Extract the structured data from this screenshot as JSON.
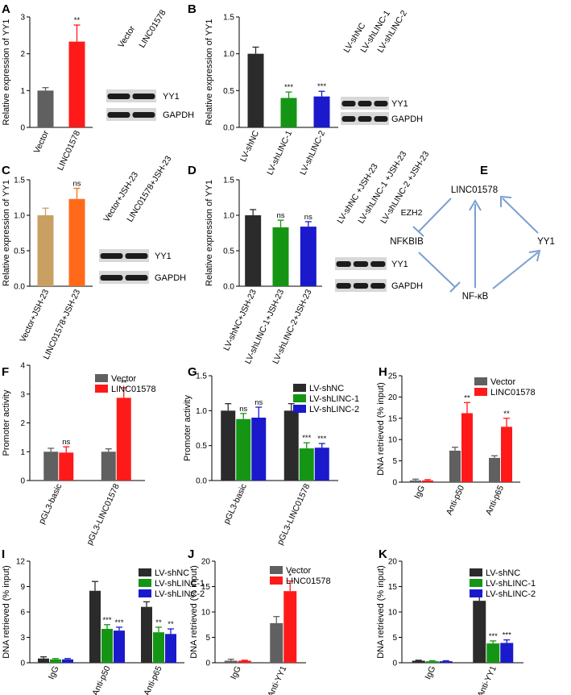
{
  "colors": {
    "gray": "#606060",
    "dark": "#2b2b2b",
    "red": "#ff1a1a",
    "green": "#149614",
    "blue": "#1a1acc",
    "tan": "#c9a061",
    "orange": "#ff6a1a",
    "arrow": "#7b9fcf"
  },
  "chart_data": [
    {
      "panel": "A",
      "type": "bar",
      "ylabel": "Relative expression of YY1",
      "ylim": [
        0,
        3
      ],
      "yticks": [
        0,
        1,
        2,
        3
      ],
      "categories": [
        "Vector",
        "LINC01578"
      ],
      "values": [
        1.0,
        2.33
      ],
      "errors": [
        0.08,
        0.45
      ],
      "colors": [
        "gray",
        "red"
      ],
      "sig": [
        "",
        "**"
      ],
      "blot": {
        "lanes": [
          "Vector",
          "LINC01578"
        ],
        "rows": [
          "YY1",
          "GAPDH"
        ]
      }
    },
    {
      "panel": "B",
      "type": "bar",
      "ylabel": "Relative expression of YY1",
      "ylim": [
        0,
        1.5
      ],
      "yticks": [
        0.0,
        0.5,
        1.0,
        1.5
      ],
      "categories": [
        "LV-shNC",
        "LV-shLINC-1",
        "LV-shLINC-2"
      ],
      "values": [
        1.0,
        0.4,
        0.42
      ],
      "errors": [
        0.09,
        0.08,
        0.07
      ],
      "colors": [
        "dark",
        "green",
        "blue"
      ],
      "sig": [
        "",
        "***",
        "***"
      ],
      "blot": {
        "lanes": [
          "LV-shNC",
          "LV-shLINC-1",
          "LV-shLINC-2"
        ],
        "rows": [
          "YY1",
          "GAPDH"
        ]
      }
    },
    {
      "panel": "C",
      "type": "bar",
      "ylabel": "Relative expression of YY1",
      "ylim": [
        0,
        1.5
      ],
      "yticks": [
        0.0,
        0.5,
        1.0,
        1.5
      ],
      "categories": [
        "Vector+JSH-23",
        "LINC01578+JSH-23"
      ],
      "values": [
        1.0,
        1.23
      ],
      "errors": [
        0.1,
        0.15
      ],
      "colors": [
        "tan",
        "orange"
      ],
      "sig": [
        "",
        "ns"
      ],
      "blot": {
        "lanes": [
          "Vector+JSH-23",
          "LINC01578+JSH-23"
        ],
        "rows": [
          "YY1",
          "GAPDH"
        ]
      }
    },
    {
      "panel": "D",
      "type": "bar",
      "ylabel": "Relative expression of YY1",
      "ylim": [
        0,
        1.5
      ],
      "yticks": [
        0.0,
        0.5,
        1.0,
        1.5
      ],
      "categories": [
        "LV-shNC+JSH-23",
        "LV-shLINC-1+JSH-23",
        "LV-shLINC-2+JSH-23"
      ],
      "values": [
        1.0,
        0.83,
        0.84
      ],
      "errors": [
        0.08,
        0.1,
        0.07
      ],
      "colors": [
        "dark",
        "green",
        "blue"
      ],
      "sig": [
        "",
        "ns",
        "ns"
      ],
      "blot": {
        "lanes": [
          "LV-shNC +JSH-23",
          "LV-shLINC-1 +JSH-23",
          "LV-shLINC-2 +JSH-23"
        ],
        "rows": [
          "YY1",
          "GAPDH"
        ]
      }
    },
    {
      "panel": "F",
      "type": "bar",
      "ylabel": "Promoter activity",
      "ylim": [
        0,
        4
      ],
      "yticks": [
        0,
        1,
        2,
        3,
        4
      ],
      "categories": [
        "pGL3-basic",
        "pGL3-LINC01578"
      ],
      "series": [
        {
          "name": "Vector",
          "color": "gray",
          "values": [
            1.0,
            1.0
          ],
          "errors": [
            0.12,
            0.1
          ],
          "sig": [
            "",
            ""
          ]
        },
        {
          "name": "LINC01578",
          "color": "red",
          "values": [
            0.97,
            2.87
          ],
          "errors": [
            0.2,
            0.35
          ],
          "sig": [
            "ns",
            "**"
          ]
        }
      ]
    },
    {
      "panel": "G",
      "type": "bar",
      "ylabel": "Promoter activity",
      "ylim": [
        0,
        1.5
      ],
      "yticks": [
        0.0,
        0.5,
        1.0,
        1.5
      ],
      "categories": [
        "pGL3-basic",
        "pGL3-LINC01578"
      ],
      "series": [
        {
          "name": "LV-shNC",
          "color": "dark",
          "values": [
            1.0,
            1.0
          ],
          "errors": [
            0.1,
            0.1
          ],
          "sig": [
            "",
            ""
          ]
        },
        {
          "name": "LV-shLINC-1",
          "color": "green",
          "values": [
            0.88,
            0.46
          ],
          "errors": [
            0.08,
            0.08
          ],
          "sig": [
            "ns",
            "***"
          ]
        },
        {
          "name": "LV-shLINC-2",
          "color": "blue",
          "values": [
            0.9,
            0.47
          ],
          "errors": [
            0.15,
            0.06
          ],
          "sig": [
            "ns",
            "***"
          ]
        }
      ]
    },
    {
      "panel": "H",
      "type": "bar",
      "ylabel": "DNA retrieved (% input)",
      "ylim": [
        0,
        25
      ],
      "yticks": [
        0,
        5,
        10,
        15,
        20,
        25
      ],
      "categories": [
        "IgG",
        "Anti-p50",
        "Anti-p65"
      ],
      "series": [
        {
          "name": "Vector",
          "color": "gray",
          "values": [
            0.4,
            7.4,
            5.7
          ],
          "errors": [
            0.3,
            0.8,
            0.5
          ],
          "sig": [
            "",
            "",
            ""
          ]
        },
        {
          "name": "LINC01578",
          "color": "red",
          "values": [
            0.4,
            16.2,
            13.0
          ],
          "errors": [
            0.2,
            2.5,
            2.0
          ],
          "sig": [
            "",
            "**",
            "**"
          ]
        }
      ]
    },
    {
      "panel": "I",
      "type": "bar",
      "ylabel": "DNA retrieved (% input)",
      "ylim": [
        0,
        12
      ],
      "yticks": [
        0,
        3,
        6,
        9,
        12
      ],
      "categories": [
        "IgG",
        "Anti-p50",
        "Anti-p65"
      ],
      "series": [
        {
          "name": "LV-shNC",
          "color": "dark",
          "values": [
            0.5,
            8.5,
            6.6
          ],
          "errors": [
            0.2,
            1.1,
            0.6
          ],
          "sig": [
            "",
            "",
            ""
          ]
        },
        {
          "name": "LV-shLINC-1",
          "color": "green",
          "values": [
            0.4,
            4.0,
            3.6
          ],
          "errors": [
            0.1,
            0.5,
            0.6
          ],
          "sig": [
            "",
            "***",
            "**"
          ]
        },
        {
          "name": "LV-shLINC-2",
          "color": "blue",
          "values": [
            0.4,
            3.8,
            3.4
          ],
          "errors": [
            0.1,
            0.4,
            0.6
          ],
          "sig": [
            "",
            "***",
            "**"
          ]
        }
      ]
    },
    {
      "panel": "J",
      "type": "bar",
      "ylabel": "DNA retrieved (% input)",
      "ylim": [
        0,
        20
      ],
      "yticks": [
        0,
        5,
        10,
        15,
        20
      ],
      "categories": [
        "IgG",
        "Anti-YY1"
      ],
      "series": [
        {
          "name": "Vector",
          "color": "gray",
          "values": [
            0.4,
            7.8
          ],
          "errors": [
            0.3,
            1.3
          ],
          "sig": [
            "",
            ""
          ]
        },
        {
          "name": "LINC01578",
          "color": "red",
          "values": [
            0.4,
            14.1
          ],
          "errors": [
            0.1,
            2.0
          ],
          "sig": [
            "",
            "*"
          ]
        }
      ]
    },
    {
      "panel": "K",
      "type": "bar",
      "ylabel": "DNA retrieved (% input)",
      "ylim": [
        0,
        20
      ],
      "yticks": [
        0,
        5,
        10,
        15,
        20
      ],
      "categories": [
        "IgG",
        "Anti-YY1"
      ],
      "series": [
        {
          "name": "LV-shNC",
          "color": "dark",
          "values": [
            0.4,
            12.2
          ],
          "errors": [
            0.1,
            1.8
          ],
          "sig": [
            "",
            ""
          ]
        },
        {
          "name": "LV-shLINC-1",
          "color": "green",
          "values": [
            0.3,
            3.8
          ],
          "errors": [
            0.1,
            0.5
          ],
          "sig": [
            "",
            "***"
          ]
        },
        {
          "name": "LV-shLINC-2",
          "color": "blue",
          "values": [
            0.3,
            3.9
          ],
          "errors": [
            0.1,
            0.6
          ],
          "sig": [
            "",
            "***"
          ]
        }
      ]
    }
  ],
  "diagram": {
    "panel": "E",
    "nodes": {
      "linc": "LINC01578",
      "nfkbib": "NFKBIB",
      "yy1": "YY1",
      "nfkb": "NF-κB"
    },
    "edge_label": "EZH2"
  }
}
